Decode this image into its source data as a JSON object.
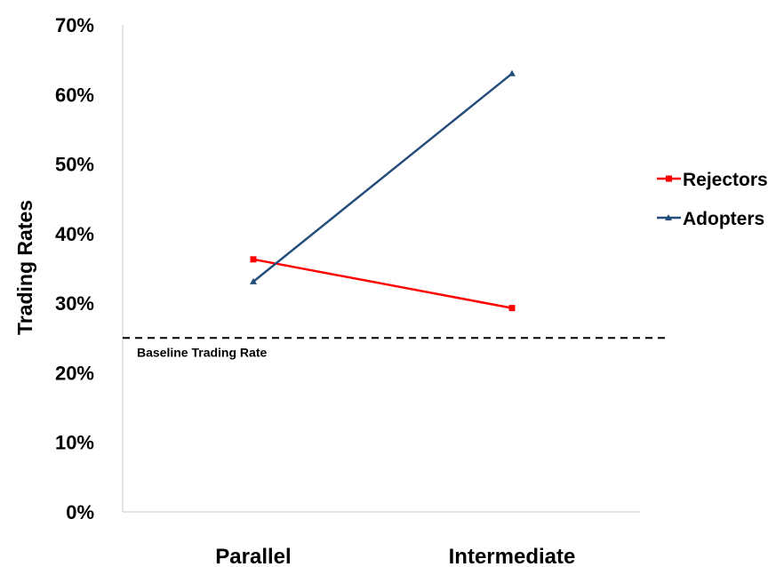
{
  "chart_data": {
    "type": "line",
    "categories": [
      "Parallel",
      "Intermediate"
    ],
    "series": [
      {
        "name": "Rejectors",
        "values": [
          0.363,
          0.293
        ],
        "color": "#ff0000",
        "marker": "square"
      },
      {
        "name": "Adopters",
        "values": [
          0.331,
          0.63
        ],
        "color": "#254e7b",
        "marker": "triangle"
      }
    ],
    "ylabel": "Trading Rates",
    "ylim": [
      0,
      0.7
    ],
    "yticks": [
      0,
      0.1,
      0.2,
      0.3,
      0.4,
      0.5,
      0.6,
      0.7
    ],
    "ytick_labels": [
      "0%",
      "10%",
      "20%",
      "30%",
      "40%",
      "50%",
      "60%",
      "70%"
    ],
    "grid": false,
    "legend_position": "right",
    "reference_line": {
      "value": 0.25,
      "label": "Baseline Trading Rate",
      "style": "dashed",
      "color": "#000000"
    }
  }
}
